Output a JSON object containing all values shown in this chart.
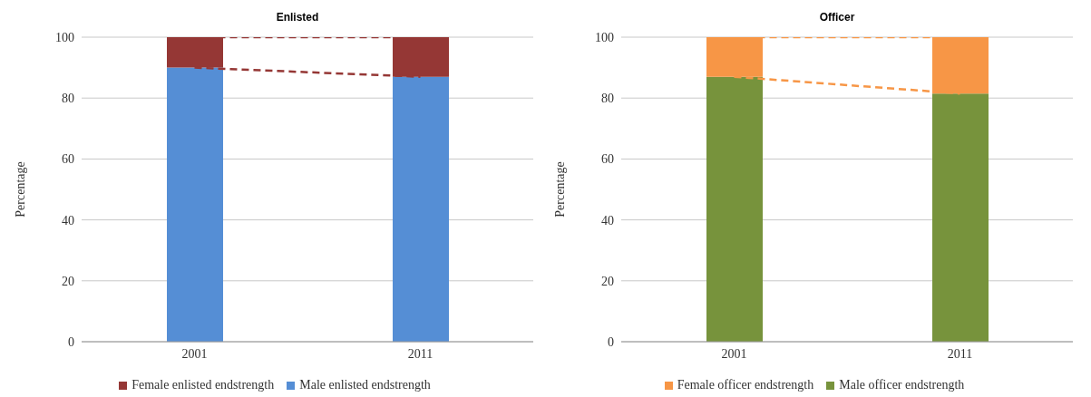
{
  "chart_data": [
    {
      "type": "bar",
      "title": "Enlisted",
      "ylabel": "Percentage",
      "categories": [
        "2001",
        "2011"
      ],
      "stacked": true,
      "ylim": [
        0,
        100
      ],
      "yticks": [
        0,
        20,
        40,
        60,
        80,
        100
      ],
      "grid": "y",
      "legend": "bottom",
      "line_style": "dashed",
      "series": [
        {
          "name": "Male enlisted endstrength",
          "color": "#558ed5",
          "values": [
            90,
            87
          ]
        },
        {
          "name": "Female enlisted endstrength",
          "color": "#953735",
          "values": [
            10,
            13
          ]
        }
      ]
    },
    {
      "type": "bar",
      "title": "Officer",
      "ylabel": "Percentage",
      "categories": [
        "2001",
        "2011"
      ],
      "stacked": true,
      "ylim": [
        0,
        100
      ],
      "yticks": [
        0,
        20,
        40,
        60,
        80,
        100
      ],
      "grid": "y",
      "legend": "bottom",
      "line_style": "dashed",
      "series": [
        {
          "name": "Male officer endstrength",
          "color": "#77933c",
          "values": [
            87,
            81.5
          ]
        },
        {
          "name": "Female officer endstrength",
          "color": "#f79646",
          "values": [
            13,
            18.5
          ]
        }
      ]
    }
  ]
}
